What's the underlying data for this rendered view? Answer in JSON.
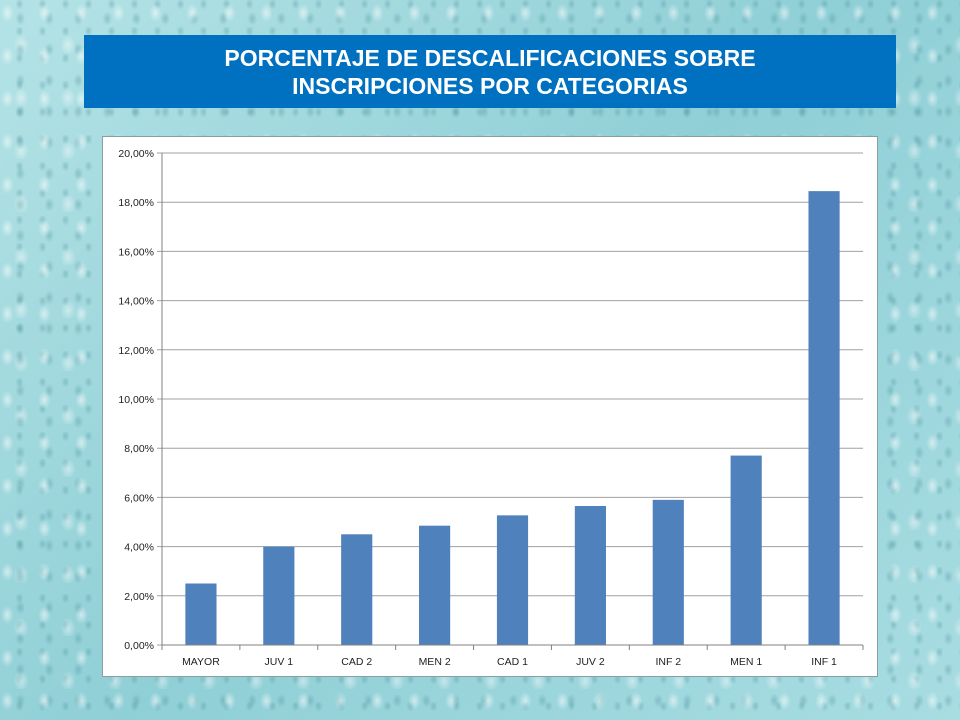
{
  "title": "PORCENTAJE DE DESCALIFICACIONES SOBRE INSCRIPCIONES POR CATEGORIAS",
  "colors": {
    "title_background": "#0070c0",
    "bar": "#4f81bd",
    "gridline": "#a0a0a0"
  },
  "chart_data": {
    "type": "bar",
    "categories": [
      "MAYOR",
      "JUV 1",
      "CAD 2",
      "MEN 2",
      "CAD 1",
      "JUV 2",
      "INF 2",
      "MEN 1",
      "INF 1"
    ],
    "values": [
      2.5,
      4.0,
      4.5,
      4.85,
      5.27,
      5.65,
      5.9,
      7.7,
      18.45
    ],
    "ylim": [
      0,
      20
    ],
    "yticks": [
      0,
      2,
      4,
      6,
      8,
      10,
      12,
      14,
      16,
      18,
      20
    ],
    "ytick_labels": [
      "0,00%",
      "2,00%",
      "4,00%",
      "6,00%",
      "8,00%",
      "10,00%",
      "12,00%",
      "14,00%",
      "16,00%",
      "18,00%",
      "20,00%"
    ],
    "title": "",
    "xlabel": "",
    "ylabel": "",
    "grid": true,
    "legend": "none"
  }
}
